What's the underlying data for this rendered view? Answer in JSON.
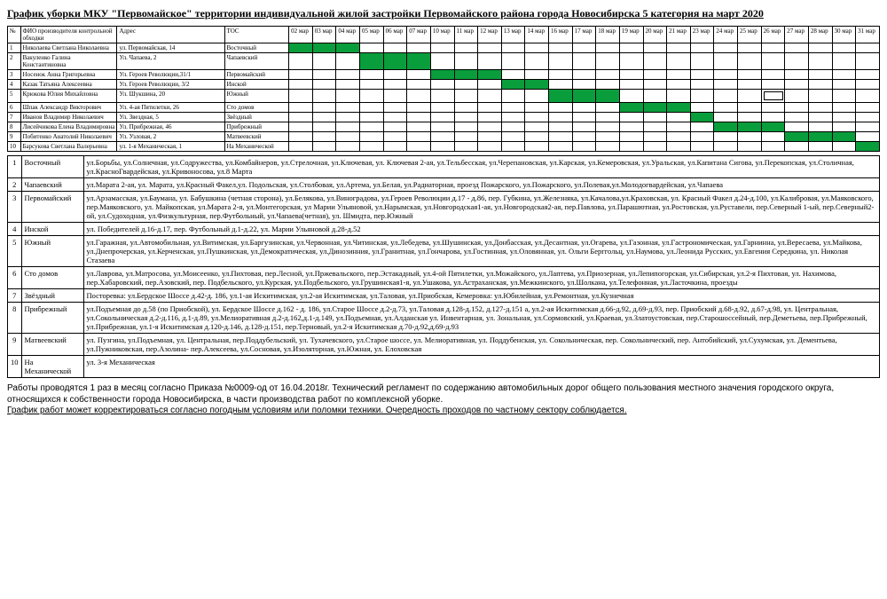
{
  "title": "График уборки МКУ \"Первомайское\" территории индивидуальной жилой застройки Первомайского района города Новосибирска 5 категория на март 2020",
  "headers": {
    "num": "№",
    "name": "ФИО производителя контрольной обходки",
    "addr": "Адрес",
    "tos": "ТОС"
  },
  "days": [
    "02 мар",
    "03 мар",
    "04 мар",
    "05 мар",
    "06 мар",
    "07 мар",
    "10 мар",
    "11 мар",
    "12 мар",
    "13 мар",
    "14 мар",
    "16 мар",
    "17 мар",
    "18 мар",
    "19 мар",
    "20 мар",
    "21 мар",
    "23 мар",
    "24 мар",
    "25 мар",
    "26 мар",
    "27 мар",
    "28 мар",
    "30 мар",
    "31 мар"
  ],
  "rows": [
    {
      "n": "1",
      "name": "Николаева Светлана Николаевна",
      "addr": "ул. Первомайская, 14",
      "tos": "Восточный",
      "green": [
        0,
        1,
        2
      ]
    },
    {
      "n": "2",
      "name": "Вакуленко Галина Константиновна",
      "addr": "Ул. Чапаева, 2",
      "tos": "Чапаевский",
      "green": [
        3,
        4,
        5
      ]
    },
    {
      "n": "3",
      "name": "Носенок Анна Григорьевна",
      "addr": "Ул. Героев Революции,31/1",
      "tos": "Первомайский",
      "green": [
        6,
        7,
        8
      ]
    },
    {
      "n": "4",
      "name": "Казак Татьяна Алексеевна",
      "addr": "Ул. Героев Революции, 3/2",
      "tos": "Инской",
      "green": [
        9,
        10
      ]
    },
    {
      "n": "5",
      "name": "Крюкова Юлия Михайловна",
      "addr": "Ул. Шукшина, 20",
      "tos": "Южный",
      "green": [
        11,
        12,
        13
      ],
      "box": 20
    },
    {
      "n": "6",
      "name": "Шпак Александр Викторович",
      "addr": "Ул. 4-ая Пятилетки, 26",
      "tos": "Сто домов",
      "green": [
        14,
        15,
        16
      ]
    },
    {
      "n": "7",
      "name": "Иванов Владимир Николаевич",
      "addr": "Ул. Звездная, 5",
      "tos": "Звёздный",
      "green": [
        17
      ]
    },
    {
      "n": "8",
      "name": "Лисейчикова Елена Владимировна",
      "addr": "Ул. Прибрежная, 46",
      "tos": "Прибрежный",
      "green": [
        18,
        19,
        20
      ]
    },
    {
      "n": "9",
      "name": "Побитенко Анатолий Николаевич",
      "addr": "Ул. Узловая, 2",
      "tos": "Матвеевский",
      "green": [
        21,
        22,
        23
      ]
    },
    {
      "n": "10",
      "name": "Барсукова Светлана Валерьевна",
      "addr": "ул. 1-я Механическая, 1",
      "tos": "На Механической",
      "green": [
        24
      ]
    }
  ],
  "areas": [
    {
      "n": "1",
      "area": "Восточный",
      "txt": "ул.Борьбы, ул.Солнечная, ул.Содружества, ул.Комбайнеров, ул.Стрелочная, ул.Ключевая, ул. Ключевая 2-ая, ул.Тельбесская, ул.Черепановская, ул.Карская, ул.Кемеровская, ул.Уральская, ул.Капитана Сигова, ул.Перекопская, ул.Столичная, ул.КрасноГвардейская, ул.Кривоносова, ул.8 Марта"
    },
    {
      "n": "2",
      "area": "Чапаевский",
      "txt": "ул.Марата 2-ая, ул. Марата, ул.Красный Факел,ул. Подольская, ул.Столбовая, ул.Артема, ул.Белая, ул.Радиаторная, проезд Пожарского, ул.Пожарского, ул.Полевая,ул.Молодогвардейская, ул.Чапаева"
    },
    {
      "n": "3",
      "area": "Первомайский",
      "txt": "ул.Арзамасская, ул.Баумана, ул. Бабушкина (четная сторона), ул.Белякова, ул.Виноградова, ул.Героев Революции д.17 - д.86, пер. Губкина, ул.Железняка, ул.Качалова,ул.Краховская, ул. Красный Факел д.24-д.100, ул.Калибровая, ул.Маяковского, пер.Маяковского, ул. Майкопская, ул.Марата 2-я, ул.Монтегорская, ул Марии Ульяновой, ул.Нарымская, ул.Новгородская1-ая, ул.Новгородская2-ая, пер.Павлова, ул.Парашютная, ул.Ростовская, ул.Руставели, пер.Северный 1-ый, пер.Северный2-ой, ул.Судоходная, ул.Физкультурная, пер.Футбольный, ул.Чапаева(четная), ул. Шмидта, пер.Южный"
    },
    {
      "n": "4",
      "area": "Инской",
      "txt": "ул. Победителей д.16-д.17, пер. Футбольный д.1-д.22, ул. Марии Ульяновой д.28-д.52"
    },
    {
      "n": "5",
      "area": "Южный",
      "txt": "ул.Гаражная, ул.Автомобильная, ул.Витимская, ул.Баргузинская, ул.Червонная, ул.Читинская, ул.Лебедева, ул.Шушинская, ул.Донбасская, ул.Десантная, ул.Огарева, ул.Газонная, ул.Гастрономическая, ул.Гарнинна, ул.Вересаева, ул.Майкова, ул.Днепрочерская, ул.Керченская, ул.Пушкинская, ул.Демократическая, ул.Динозинния, ул.Гранитная, ул.Гончарова, ул.Гостинная, ул.Оловянная, ул. Ольги Берггольц, ул.Наумова, ул.Леонида Русских, ул.Евгения Середкина, ул. Николая Стазаева"
    },
    {
      "n": "6",
      "area": "Сто домов",
      "txt": "ул.Лаврова, ул.Матросова, ул.Моисеенко, ул.Пихтовая, пер.Лесной, ул.Пржевальского, пер.Эстакадный, ул.4-ой Пятилетки, ул.Можайского, ул.Лаптева, ул.Приозерная, ул.Лепипогорская, ул.Сибирская, ул.2-я Пихтовая, ул. Нахимова, пер.Хабаровский, пер.Азовский, пер. Подбельского, ул.Курская, ул.Подбельского, ул.Грушинская1-я, ул.Ушакова, ул.Астраханская, ул.Межкинского, ул.Шолкана, ул.Телефонная, ул.Ласточкина, проезды"
    },
    {
      "n": "7",
      "area": "Звёздный",
      "txt": "Посторевка: ул.Бердское Шоссе д.42-д. 186, ул.1-ая Искитимская, ул.2-ая Искитимская, ул.Таловая, ул.Приобская, Кемеровка: ул.Юбилейная, ул.Ремонтная, ул.Кузнечная"
    },
    {
      "n": "8",
      "area": "Прибрежный",
      "txt": "ул.Подъемная до д.58 (по Приобской), ул. Бердское Шоссе д.162 - д. 186, ул.Старое Шоссе д.2-д.73, ул.Таловая д.128-д.152, д.127-д.151 а, ул.2-ая Искитимская д.66-д.92, д.69-д.93, пер. Приобский д.68-д.92, д.67-д.98, ул. Центральная, ул.Сокольническая д.2-д.116, д.1-д.89, ул.Мелиоративная д.2-д.162,д.1-д.149, ул.Подъемная, ул.Алданская ул. Инвентарная, ул. Зональная, ул.Сормовский, ул.Краевая, ул.Златоустовская, пер.Старошоссейный, пер.Деметьева, пер.Прибрежный, ул.Прибрежная, ул.1-я Искитимская д.120-д.146, д.128-д.151, пер.Терновый, ул.2-я Искитимская д.70-д.92,д.69-д.93"
    },
    {
      "n": "9",
      "area": "Матвеевский",
      "txt": "ул. Пузгина, ул.Подъемная, ул. Центральная, пер.Поддубельский, ул. Тухачевского, ул.Старое шоссе, ул. Мелиоративная, ул. Поддубенская, ул. Сокольническая, пер. Сокольнический, пер. Антобийский, ул.Сухумская, ул. Дементьева, ул.Пужниковская, пер.Азолина- пер.Алексеева, ул.Сосновая, ул.Изоляторная, ул.Южная, ул. Елоховская"
    },
    {
      "n": "10",
      "area": "На Механической",
      "txt": "ул. 3-я Механическая"
    }
  ],
  "footer": [
    "Работы проводятся 1 раз в месяц согласно Приказа №0009-од от 16.04.2018г. Технический регламент по содержанию автомобильных дорог общего пользования местного значения городского округа, относящихся к собственности города Новосибирска, в части производства работ по комплексной уборке.",
    "График работ может корректироваться согласно погодным условиям или поломки техники. Очередность проходов по частному сектору соблюдается."
  ]
}
